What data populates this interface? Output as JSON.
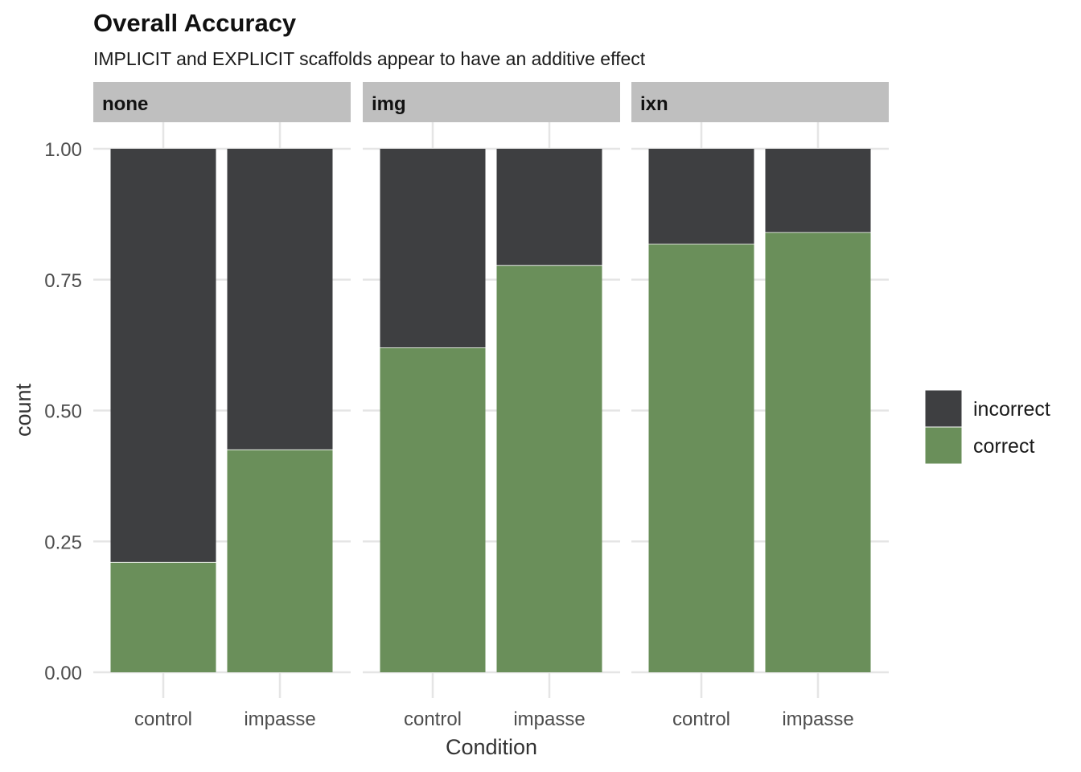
{
  "chart_data": {
    "type": "bar",
    "stacked": true,
    "title": "Overall Accuracy",
    "subtitle": "IMPLICIT and EXPLICIT scaffolds appear to have an additive effect",
    "xlabel": "Condition",
    "ylabel": "count",
    "ylim": [
      0,
      1
    ],
    "yticks": [
      "0.00",
      "0.25",
      "0.50",
      "0.75",
      "1.00"
    ],
    "ytick_values": [
      0,
      0.25,
      0.5,
      0.75,
      1
    ],
    "categories": [
      "control",
      "impasse"
    ],
    "facets": [
      {
        "label": "none",
        "series": [
          {
            "name": "incorrect",
            "values": [
              0.79,
              0.575
            ]
          },
          {
            "name": "correct",
            "values": [
              0.21,
              0.425
            ]
          }
        ]
      },
      {
        "label": "img",
        "series": [
          {
            "name": "incorrect",
            "values": [
              0.38,
              0.223
            ]
          },
          {
            "name": "correct",
            "values": [
              0.62,
              0.777
            ]
          }
        ]
      },
      {
        "label": "ixn",
        "series": [
          {
            "name": "incorrect",
            "values": [
              0.182,
              0.16
            ]
          },
          {
            "name": "correct",
            "values": [
              0.818,
              0.84
            ]
          }
        ]
      }
    ],
    "legend": {
      "position": "right",
      "entries": [
        "incorrect",
        "correct"
      ]
    },
    "colors": {
      "incorrect": "#3e3f41",
      "correct": "#6a8f5a",
      "strip": "#bfbfbf",
      "grid": "#e5e5e5"
    },
    "grid": true
  }
}
